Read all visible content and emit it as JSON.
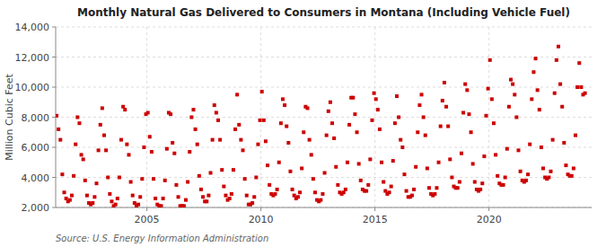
{
  "chart_data": {
    "type": "scatter",
    "title": "Monthly Natural Gas Delivered to Consumers in Montana (Including Vehicle Fuel)",
    "y_label": "Million Cubic Feet",
    "annotations": [
      "Source: U.S. Energy Information Administration"
    ],
    "color": "#CC0000",
    "marker": "square",
    "grid": true,
    "xlim": [
      2001.0,
      2024.5
    ],
    "xticks": [
      2005,
      2010,
      2015,
      2020
    ],
    "ylim": [
      2000,
      14000
    ],
    "yticks": [
      {
        "value": 2000,
        "label": "2,000"
      },
      {
        "value": 4000,
        "label": "4,000"
      },
      {
        "value": 6000,
        "label": "6,000"
      },
      {
        "value": 8000,
        "label": "8,000"
      },
      {
        "value": 10000,
        "label": "10,000"
      },
      {
        "value": 12000,
        "label": "12,000"
      },
      {
        "value": 14000,
        "label": "14,000"
      }
    ],
    "x": [
      2001.0416666666667,
      2001.125,
      2001.2083333333333,
      2001.2916666666667,
      2001.375,
      2001.4583333333333,
      2001.5416666666667,
      2001.625,
      2001.7083333333333,
      2001.7916666666667,
      2001.875,
      2001.9583333333333,
      2002.0416666666667,
      2002.125,
      2002.2083333333333,
      2002.2916666666667,
      2002.375,
      2002.4583333333333,
      2002.5416666666667,
      2002.625,
      2002.7083333333333,
      2002.7916666666667,
      2002.875,
      2002.9583333333333,
      2003.0416666666667,
      2003.125,
      2003.2083333333333,
      2003.2916666666667,
      2003.375,
      2003.4583333333333,
      2003.5416666666667,
      2003.625,
      2003.7083333333333,
      2003.7916666666667,
      2003.875,
      2003.9583333333333,
      2004.0416666666667,
      2004.125,
      2004.2083333333333,
      2004.2916666666667,
      2004.375,
      2004.4583333333333,
      2004.5416666666667,
      2004.625,
      2004.7083333333333,
      2004.7916666666667,
      2004.875,
      2004.9583333333333,
      2005.0416666666667,
      2005.125,
      2005.2083333333333,
      2005.2916666666667,
      2005.375,
      2005.4583333333333,
      2005.5416666666667,
      2005.625,
      2005.7083333333333,
      2005.7916666666667,
      2005.875,
      2005.9583333333333,
      2006.0416666666667,
      2006.125,
      2006.2083333333333,
      2006.2916666666667,
      2006.375,
      2006.4583333333333,
      2006.5416666666667,
      2006.625,
      2006.7083333333333,
      2006.7916666666667,
      2006.875,
      2006.9583333333333,
      2007.0416666666667,
      2007.125,
      2007.2083333333333,
      2007.2916666666667,
      2007.375,
      2007.4583333333333,
      2007.5416666666667,
      2007.625,
      2007.7083333333333,
      2007.7916666666667,
      2007.875,
      2007.9583333333333,
      2008.0416666666667,
      2008.125,
      2008.2083333333333,
      2008.2916666666667,
      2008.375,
      2008.4583333333333,
      2008.5416666666667,
      2008.625,
      2008.7083333333333,
      2008.7916666666667,
      2008.875,
      2008.9583333333333,
      2009.0416666666667,
      2009.125,
      2009.2083333333333,
      2009.2916666666667,
      2009.375,
      2009.4583333333333,
      2009.5416666666667,
      2009.625,
      2009.7083333333333,
      2009.7916666666667,
      2009.875,
      2009.9583333333333,
      2010.0416666666667,
      2010.125,
      2010.2083333333333,
      2010.2916666666667,
      2010.375,
      2010.4583333333333,
      2010.5416666666667,
      2010.625,
      2010.7083333333333,
      2010.7916666666667,
      2010.875,
      2010.9583333333333,
      2011.0416666666667,
      2011.125,
      2011.2083333333333,
      2011.2916666666667,
      2011.375,
      2011.4583333333333,
      2011.5416666666667,
      2011.625,
      2011.7083333333333,
      2011.7916666666667,
      2011.875,
      2011.9583333333333,
      2012.0416666666667,
      2012.125,
      2012.2083333333333,
      2012.2916666666667,
      2012.375,
      2012.4583333333333,
      2012.5416666666667,
      2012.625,
      2012.7083333333333,
      2012.7916666666667,
      2012.875,
      2012.9583333333333,
      2013.0416666666667,
      2013.125,
      2013.2083333333333,
      2013.2916666666667,
      2013.375,
      2013.4583333333333,
      2013.5416666666667,
      2013.625,
      2013.7083333333333,
      2013.7916666666667,
      2013.875,
      2013.9583333333333,
      2014.0416666666667,
      2014.125,
      2014.2083333333333,
      2014.2916666666667,
      2014.375,
      2014.4583333333333,
      2014.5416666666667,
      2014.625,
      2014.7083333333333,
      2014.7916666666667,
      2014.875,
      2014.9583333333333,
      2015.0416666666667,
      2015.125,
      2015.2083333333333,
      2015.2916666666667,
      2015.375,
      2015.4583333333333,
      2015.5416666666667,
      2015.625,
      2015.7083333333333,
      2015.7916666666667,
      2015.875,
      2015.9583333333333,
      2016.0416666666667,
      2016.125,
      2016.2083333333333,
      2016.2916666666667,
      2016.375,
      2016.4583333333333,
      2016.5416666666667,
      2016.625,
      2016.7083333333333,
      2016.7916666666667,
      2016.875,
      2016.9583333333333,
      2017.0416666666667,
      2017.125,
      2017.2083333333333,
      2017.2916666666667,
      2017.375,
      2017.4583333333333,
      2017.5416666666667,
      2017.625,
      2017.7083333333333,
      2017.7916666666667,
      2017.875,
      2017.9583333333333,
      2018.0416666666667,
      2018.125,
      2018.2083333333333,
      2018.2916666666667,
      2018.375,
      2018.4583333333333,
      2018.5416666666667,
      2018.625,
      2018.7083333333333,
      2018.7916666666667,
      2018.875,
      2018.9583333333333,
      2019.0416666666667,
      2019.125,
      2019.2083333333333,
      2019.2916666666667,
      2019.375,
      2019.4583333333333,
      2019.5416666666667,
      2019.625,
      2019.7083333333333,
      2019.7916666666667,
      2019.875,
      2019.9583333333333,
      2020.0416666666667,
      2020.125,
      2020.2083333333333,
      2020.2916666666667,
      2020.375,
      2020.4583333333333,
      2020.5416666666667,
      2020.625,
      2020.7083333333333,
      2020.7916666666667,
      2020.875,
      2020.9583333333333,
      2021.0416666666667,
      2021.125,
      2021.2083333333333,
      2021.2916666666667,
      2021.375,
      2021.4583333333333,
      2021.5416666666667,
      2021.625,
      2021.7083333333333,
      2021.7916666666667,
      2021.875,
      2021.9583333333333,
      2022.0416666666667,
      2022.125,
      2022.2083333333333,
      2022.2916666666667,
      2022.375,
      2022.4583333333333,
      2022.5416666666667,
      2022.625,
      2022.7083333333333,
      2022.7916666666667,
      2022.875,
      2022.9583333333333,
      2023.0416666666667,
      2023.125,
      2023.2083333333333,
      2023.2916666666667,
      2023.375,
      2023.4583333333333,
      2023.5416666666667,
      2023.625,
      2023.7083333333333,
      2023.7916666666667,
      2023.875,
      2023.9583333333333,
      2024.0416666666667,
      2024.125,
      2024.2083333333333
    ],
    "values": [
      8100,
      7200,
      6500,
      4200,
      3000,
      2600,
      2400,
      2500,
      2800,
      4100,
      6200,
      8000,
      7600,
      5500,
      5200,
      3800,
      2800,
      2300,
      2200,
      2300,
      2700,
      3600,
      5800,
      7500,
      8600,
      6800,
      5800,
      4000,
      2900,
      2400,
      2100,
      2200,
      2600,
      4000,
      6500,
      8700,
      8500,
      6200,
      5500,
      3700,
      2800,
      2300,
      2100,
      2200,
      2700,
      3900,
      6000,
      8200,
      8300,
      6700,
      5700,
      3900,
      2600,
      2200,
      2100,
      2100,
      2600,
      3800,
      5900,
      8300,
      8200,
      6300,
      5600,
      3500,
      2700,
      2100,
      2100,
      2100,
      2500,
      3700,
      5700,
      8000,
      8500,
      7200,
      6200,
      4100,
      3200,
      2700,
      2400,
      2400,
      2800,
      4300,
      6500,
      8800,
      8300,
      7800,
      6500,
      4500,
      3400,
      2800,
      2500,
      2600,
      2900,
      4500,
      7200,
      9500,
      7500,
      6500,
      5800,
      3900,
      2800,
      2200,
      2200,
      2300,
      2700,
      4000,
      6200,
      7800,
      9700,
      7800,
      6400,
      4800,
      3500,
      2900,
      2800,
      2900,
      3200,
      5000,
      7600,
      9200,
      8800,
      7400,
      6300,
      4400,
      3200,
      2800,
      2600,
      2700,
      3000,
      4600,
      7000,
      8700,
      8600,
      6500,
      5500,
      3900,
      3000,
      2500,
      2400,
      2500,
      2900,
      4300,
      6800,
      8400,
      9000,
      7600,
      6600,
      4700,
      3500,
      3000,
      2900,
      3000,
      3200,
      5000,
      7500,
      9300,
      9300,
      8200,
      7000,
      4900,
      3800,
      3200,
      3100,
      3100,
      3500,
      5200,
      7800,
      9600,
      9200,
      8500,
      7200,
      5000,
      3700,
      3100,
      2900,
      3000,
      3400,
      5100,
      7600,
      9400,
      8000,
      6500,
      6000,
      4200,
      3100,
      2700,
      2700,
      2800,
      3200,
      4700,
      7000,
      8800,
      9500,
      8000,
      6800,
      4600,
      3300,
      2900,
      2800,
      2900,
      3300,
      5000,
      7400,
      9100,
      10300,
      8700,
      7400,
      5200,
      4000,
      3400,
      3300,
      3300,
      3700,
      5600,
      8300,
      10200,
      9800,
      8200,
      7000,
      4900,
      3700,
      3200,
      3100,
      3200,
      3600,
      5400,
      8100,
      9900,
      11800,
      9200,
      7600,
      5500,
      4100,
      3600,
      3500,
      3500,
      4000,
      5900,
      8700,
      10500,
      10200,
      9500,
      8000,
      5800,
      4400,
      3800,
      3700,
      3800,
      4200,
      6200,
      9200,
      11000,
      11900,
      9800,
      8500,
      6000,
      4600,
      4000,
      3900,
      4000,
      4400,
      6500,
      9600,
      11800,
      12700,
      10200,
      8700,
      6300,
      4800,
      4200,
      4100,
      4100,
      4600,
      6800,
      10000,
      11600,
      10000,
      9500,
      9600
    ]
  }
}
